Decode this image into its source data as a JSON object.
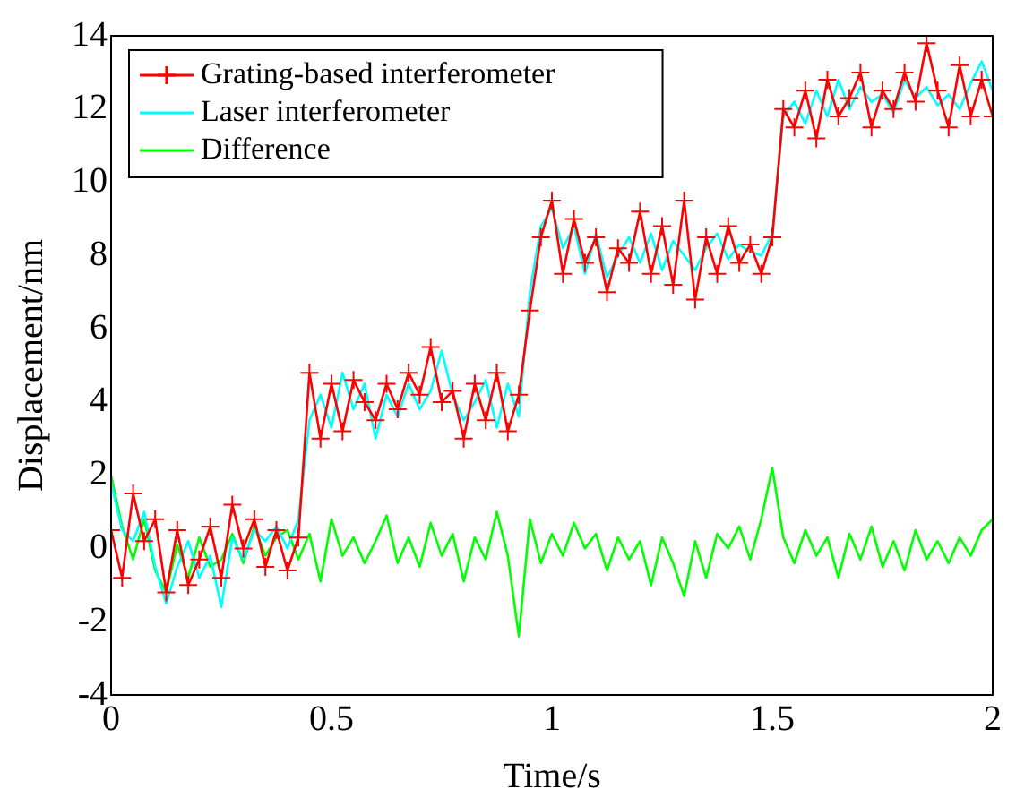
{
  "chart_data": {
    "type": "line",
    "xlabel": "Time/s",
    "ylabel": "Displacement/nm",
    "xlim": [
      0,
      2
    ],
    "xticks": [
      0,
      0.5,
      1,
      1.5,
      2
    ],
    "ylim": [
      -4,
      14
    ],
    "yticks": [
      -4,
      -2,
      0,
      2,
      4,
      6,
      8,
      10,
      12,
      14
    ],
    "grid": false,
    "legend": "top left",
    "line_style": "solid",
    "x": [
      0,
      0.025,
      0.05,
      0.075,
      0.1,
      0.125,
      0.15,
      0.175,
      0.2,
      0.225,
      0.25,
      0.275,
      0.3,
      0.325,
      0.35,
      0.375,
      0.4,
      0.425,
      0.45,
      0.475,
      0.5,
      0.525,
      0.55,
      0.575,
      0.6,
      0.625,
      0.65,
      0.675,
      0.7,
      0.725,
      0.75,
      0.775,
      0.8,
      0.825,
      0.85,
      0.875,
      0.9,
      0.925,
      0.95,
      0.975,
      1,
      1.025,
      1.05,
      1.075,
      1.1,
      1.125,
      1.15,
      1.175,
      1.2,
      1.225,
      1.25,
      1.275,
      1.3,
      1.325,
      1.35,
      1.375,
      1.4,
      1.425,
      1.45,
      1.475,
      1.5,
      1.525,
      1.55,
      1.575,
      1.6,
      1.625,
      1.65,
      1.675,
      1.7,
      1.725,
      1.75,
      1.775,
      1.8,
      1.825,
      1.85,
      1.875,
      1.9,
      1.925,
      1.95,
      1.975,
      2
    ],
    "series": [
      {
        "name": "Grating-based interferometer",
        "color": "#ff0000",
        "marker": "cross",
        "values": [
          0.5,
          -0.8,
          1.5,
          0.2,
          0.8,
          -1.2,
          0.5,
          -1.0,
          -0.3,
          0.6,
          -0.8,
          1.2,
          0.0,
          0.8,
          -0.5,
          0.5,
          -0.6,
          0.3,
          4.8,
          3.0,
          4.5,
          3.2,
          4.6,
          4.0,
          3.5,
          4.5,
          3.8,
          4.8,
          4.2,
          5.5,
          4.0,
          4.3,
          3.0,
          4.5,
          3.5,
          4.8,
          3.2,
          4.2,
          6.5,
          8.5,
          9.5,
          7.5,
          9.0,
          7.8,
          8.5,
          7.0,
          8.2,
          7.8,
          9.2,
          7.5,
          8.8,
          7.2,
          9.5,
          6.8,
          8.5,
          7.5,
          8.8,
          7.8,
          8.3,
          7.5,
          8.5,
          12.0,
          11.5,
          12.5,
          11.2,
          12.8,
          11.8,
          12.3,
          13.0,
          11.5,
          12.5,
          12.0,
          13.0,
          12.2,
          13.8,
          12.5,
          11.5,
          13.2,
          11.8,
          12.8,
          11.8
        ]
      },
      {
        "name": "Laser interferometer",
        "color": "#00ffff",
        "marker": "none",
        "values": [
          1.8,
          0.5,
          0.2,
          1.0,
          -0.5,
          -1.5,
          -0.5,
          0.2,
          -0.8,
          -0.2,
          -1.6,
          0.3,
          -0.3,
          0.5,
          0.2,
          0.6,
          0.0,
          0.8,
          3.5,
          4.2,
          3.3,
          4.8,
          3.8,
          4.5,
          3.0,
          4.2,
          3.6,
          4.5,
          3.8,
          4.3,
          5.4,
          4.2,
          3.5,
          4.0,
          4.6,
          3.3,
          4.5,
          3.6,
          7.0,
          8.8,
          9.3,
          8.2,
          8.8,
          7.5,
          8.6,
          7.4,
          8.0,
          8.5,
          7.8,
          8.6,
          7.6,
          8.4,
          8.0,
          7.6,
          8.2,
          8.6,
          7.9,
          8.3,
          8.1,
          8.0,
          8.6,
          11.8,
          12.2,
          11.6,
          12.5,
          11.8,
          12.8,
          12.0,
          12.6,
          12.2,
          12.4,
          11.9,
          12.8,
          12.3,
          12.6,
          12.1,
          12.4,
          12.0,
          12.7,
          13.3,
          12.5
        ]
      },
      {
        "name": "Difference",
        "color": "#00ff00",
        "marker": "none",
        "values": [
          2.0,
          0.6,
          -0.3,
          0.8,
          -0.6,
          -1.2,
          0.1,
          -0.8,
          0.3,
          -0.5,
          -0.3,
          0.4,
          -0.4,
          0.6,
          -0.2,
          0.3,
          0.5,
          -0.3,
          0.4,
          -0.9,
          0.8,
          -0.2,
          0.3,
          -0.4,
          0.2,
          0.9,
          -0.4,
          0.3,
          -0.5,
          0.7,
          -0.2,
          0.4,
          -0.9,
          0.3,
          -0.3,
          1.0,
          -0.2,
          -2.4,
          0.8,
          -0.4,
          0.4,
          -0.2,
          0.7,
          0.0,
          0.4,
          -0.6,
          0.3,
          -0.3,
          0.2,
          -1.0,
          0.3,
          -0.4,
          -1.3,
          0.2,
          -0.8,
          0.4,
          0.0,
          0.6,
          -0.3,
          0.8,
          2.2,
          0.3,
          -0.4,
          0.5,
          -0.2,
          0.3,
          -0.8,
          0.4,
          -0.3,
          0.6,
          -0.5,
          0.2,
          -0.6,
          0.5,
          -0.3,
          0.2,
          -0.4,
          0.3,
          -0.2,
          0.5,
          0.8
        ]
      }
    ]
  }
}
